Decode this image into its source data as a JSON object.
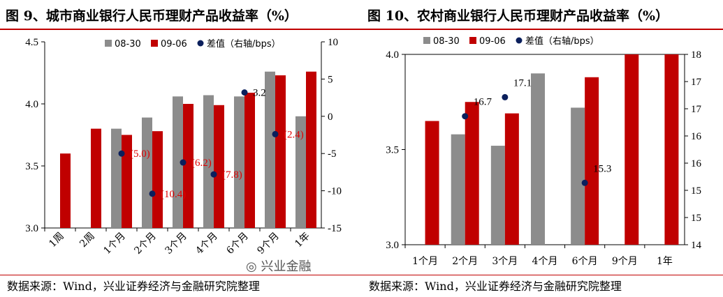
{
  "source_text": "数据来源：Wind，兴业证券经济与金融研究院整理",
  "watermark_text": "兴业金融",
  "charts": [
    {
      "title": "图 9、城市商业银行人民币理财产品收益率（%）",
      "source": "数据来源：Wind，兴业证券经济与金融研究院整理",
      "chart_data": {
        "type": "bar",
        "categories": [
          "1周",
          "2周",
          "1个月",
          "2个月",
          "3个月",
          "4个月",
          "6个月",
          "9个月",
          "1年"
        ],
        "series": [
          {
            "name": "08-30",
            "color": "#8c8c8c",
            "axis": "left",
            "values": [
              null,
              null,
              3.8,
              3.89,
              4.06,
              4.07,
              4.06,
              4.26,
              3.9
            ]
          },
          {
            "name": "09-06",
            "color": "#c00000",
            "axis": "left",
            "values": [
              3.6,
              3.8,
              3.75,
              3.78,
              4.0,
              3.99,
              4.09,
              4.23,
              4.26
            ]
          },
          {
            "name": "差值（右轴/bps）",
            "color": "#0b1f5c",
            "axis": "right",
            "type": "scatter",
            "values": [
              null,
              null,
              -5.0,
              -10.4,
              -6.2,
              -7.8,
              3.2,
              -2.4,
              null
            ],
            "labels": [
              null,
              null,
              "(5.0)",
              "(10.4)",
              "(6.2)",
              "(7.8)",
              "3.2",
              "(2.4)",
              null
            ]
          }
        ],
        "ylim": [
          3.0,
          4.5
        ],
        "yticks": [
          "3.0",
          "3.5",
          "4.0",
          "4.5"
        ],
        "y2lim": [
          -15,
          10
        ],
        "y2ticks": [
          "10",
          "5",
          "0",
          "-5",
          "-10",
          "-15"
        ],
        "legend_position": "top",
        "grid": false
      }
    },
    {
      "title": "图 10、农村商业银行人民币理财产品收益率（%）",
      "source": "数据来源：Wind，兴业证券经济与金融研究院整理",
      "chart_data": {
        "type": "bar",
        "categories": [
          "1个月",
          "2个月",
          "3个月",
          "4个月",
          "6个月",
          "9个月",
          "1年"
        ],
        "series": [
          {
            "name": "08-30",
            "color": "#8c8c8c",
            "axis": "left",
            "values": [
              null,
              3.58,
              3.52,
              3.9,
              3.72,
              null,
              null
            ]
          },
          {
            "name": "09-06",
            "color": "#c00000",
            "axis": "left",
            "values": [
              3.65,
              3.75,
              3.69,
              null,
              3.88,
              4.0,
              4.0
            ]
          },
          {
            "name": "差值（右轴/bps）",
            "color": "#0b1f5c",
            "axis": "right",
            "type": "scatter",
            "values": [
              null,
              16.7,
              17.1,
              null,
              15.3,
              null,
              null
            ],
            "labels": [
              null,
              "16.7",
              "17.1",
              null,
              "15.3",
              null,
              null
            ]
          }
        ],
        "ylim": [
          3.0,
          4.0
        ],
        "yticks": [
          "3.0",
          "3.5",
          "4.0"
        ],
        "y2lim": [
          14,
          18
        ],
        "y2ticks": [
          "18",
          "17",
          "17",
          "16",
          "16",
          "15",
          "15",
          "14"
        ],
        "legend_position": "top",
        "grid": false
      }
    }
  ]
}
